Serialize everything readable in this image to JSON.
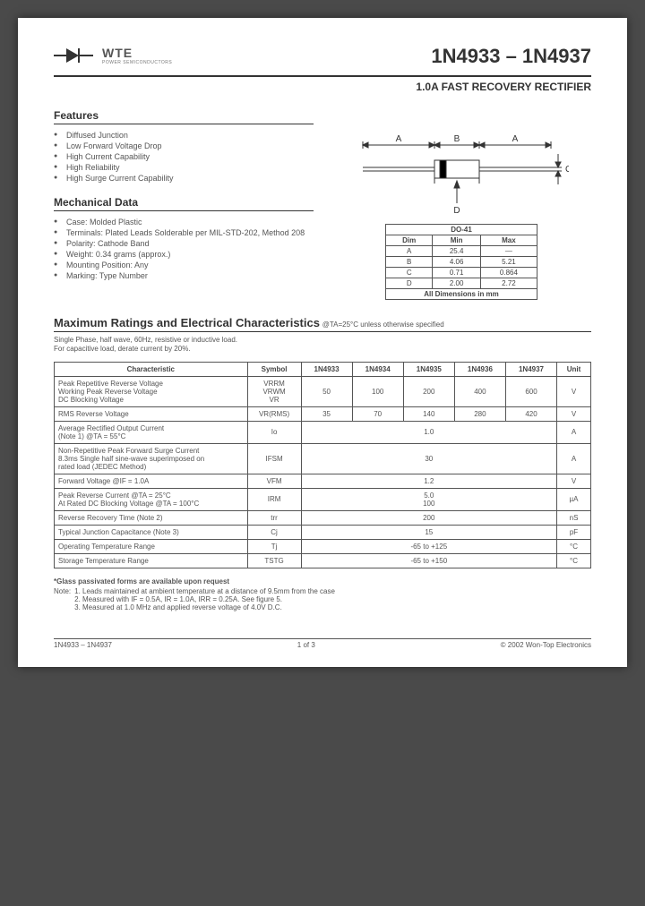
{
  "logo": {
    "name": "WTE",
    "sub": "POWER SEMICONDUCTORS"
  },
  "part_number": "1N4933 – 1N4937",
  "subtitle": "1.0A FAST RECOVERY RECTIFIER",
  "features": {
    "title": "Features",
    "items": [
      "Diffused Junction",
      "Low Forward Voltage Drop",
      "High Current Capability",
      "High Reliability",
      "High Surge Current Capability"
    ]
  },
  "mechanical": {
    "title": "Mechanical Data",
    "items": [
      "Case: Molded Plastic",
      "Terminals: Plated Leads Solderable per MIL-STD-202, Method 208",
      "Polarity: Cathode Band",
      "Weight: 0.34 grams (approx.)",
      "Mounting Position: Any",
      "Marking: Type Number"
    ]
  },
  "package_diagram": {
    "labels": {
      "a": "A",
      "b": "B",
      "c": "C",
      "d": "D"
    },
    "body_color": "#ffffff",
    "band_color": "#000000",
    "line_color": "#333333"
  },
  "dim_table": {
    "title": "DO-41",
    "headers": [
      "Dim",
      "Min",
      "Max"
    ],
    "rows": [
      [
        "A",
        "25.4",
        "—"
      ],
      [
        "B",
        "4.06",
        "5.21"
      ],
      [
        "C",
        "0.71",
        "0.864"
      ],
      [
        "D",
        "2.00",
        "2.72"
      ]
    ],
    "caption": "All Dimensions in mm"
  },
  "ratings": {
    "title": "Maximum Ratings and Electrical Characteristics",
    "condition": "@TA=25°C unless otherwise specified",
    "note1": "Single Phase, half wave, 60Hz, resistive or inductive load.",
    "note2": "For capacitive load, derate current by 20%.",
    "headers": [
      "Characteristic",
      "Symbol",
      "1N4933",
      "1N4934",
      "1N4935",
      "1N4936",
      "1N4937",
      "Unit"
    ],
    "rows": [
      {
        "char": "Peak Repetitive Reverse Voltage\nWorking Peak Reverse Voltage\nDC Blocking Voltage",
        "sym": "VRRM\nVRWM\nVR",
        "vals": [
          "50",
          "100",
          "200",
          "400",
          "600"
        ],
        "unit": "V"
      },
      {
        "char": "RMS Reverse Voltage",
        "sym": "VR(RMS)",
        "vals": [
          "35",
          "70",
          "140",
          "280",
          "420"
        ],
        "unit": "V"
      },
      {
        "char": "Average Rectified Output Current\n(Note 1)                              @TA = 55°C",
        "sym": "Io",
        "span": "1.0",
        "unit": "A"
      },
      {
        "char": "Non-Repetitive Peak Forward Surge Current\n8.3ms Single half sine-wave superimposed on\nrated load (JEDEC Method)",
        "sym": "IFSM",
        "span": "30",
        "unit": "A"
      },
      {
        "char": "Forward Voltage                    @IF = 1.0A",
        "sym": "VFM",
        "span": "1.2",
        "unit": "V"
      },
      {
        "char": "Peak Reverse Current         @TA = 25°C\nAt Rated DC Blocking Voltage  @TA = 100°C",
        "sym": "IRM",
        "span": "5.0\n100",
        "unit": "µA"
      },
      {
        "char": "Reverse Recovery Time (Note 2)",
        "sym": "trr",
        "span": "200",
        "unit": "nS"
      },
      {
        "char": "Typical Junction Capacitance (Note 3)",
        "sym": "Cj",
        "span": "15",
        "unit": "pF"
      },
      {
        "char": "Operating Temperature Range",
        "sym": "Tj",
        "span": "-65 to +125",
        "unit": "°C"
      },
      {
        "char": "Storage Temperature Range",
        "sym": "TSTG",
        "span": "-65 to +150",
        "unit": "°C"
      }
    ]
  },
  "footnotes": {
    "glass": "*Glass passivated forms are available upon request",
    "label": "Note:",
    "items": [
      "1. Leads maintained at ambient temperature at a distance of 9.5mm from the case",
      "2. Measured with IF = 0.5A, IR = 1.0A, IRR = 0.25A. See figure 5.",
      "3. Measured at 1.0 MHz and applied reverse voltage of 4.0V D.C."
    ]
  },
  "footer": {
    "left": "1N4933 – 1N4937",
    "center": "1 of 3",
    "right": "© 2002 Won-Top Electronics"
  }
}
